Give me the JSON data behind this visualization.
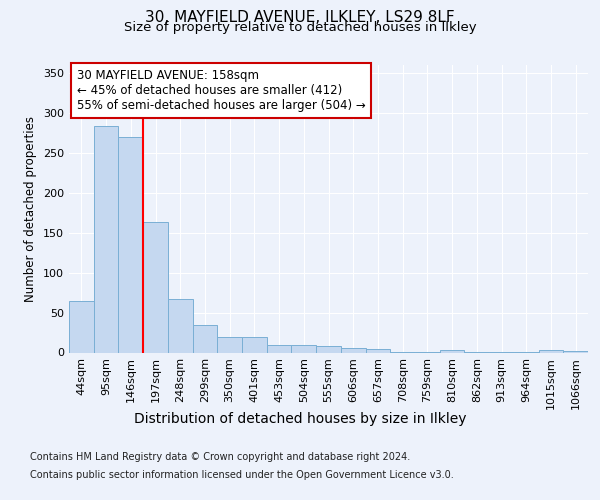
{
  "title": "30, MAYFIELD AVENUE, ILKLEY, LS29 8LF",
  "subtitle": "Size of property relative to detached houses in Ilkley",
  "xlabel": "Distribution of detached houses by size in Ilkley",
  "ylabel": "Number of detached properties",
  "footnote1": "Contains HM Land Registry data © Crown copyright and database right 2024.",
  "footnote2": "Contains public sector information licensed under the Open Government Licence v3.0.",
  "annotation_line1": "30 MAYFIELD AVENUE: 158sqm",
  "annotation_line2": "← 45% of detached houses are smaller (412)",
  "annotation_line3": "55% of semi-detached houses are larger (504) →",
  "bar_labels": [
    "44sqm",
    "95sqm",
    "146sqm",
    "197sqm",
    "248sqm",
    "299sqm",
    "350sqm",
    "401sqm",
    "453sqm",
    "504sqm",
    "555sqm",
    "606sqm",
    "657sqm",
    "708sqm",
    "759sqm",
    "810sqm",
    "862sqm",
    "913sqm",
    "964sqm",
    "1015sqm",
    "1066sqm"
  ],
  "bar_values": [
    65,
    283,
    270,
    163,
    67,
    35,
    20,
    20,
    9,
    10,
    8,
    6,
    5,
    1,
    1,
    3,
    1,
    1,
    1,
    3,
    2
  ],
  "bar_color": "#c5d8f0",
  "bar_edge_color": "#7aafd4",
  "red_line_x": 2.5,
  "ylim": [
    0,
    360
  ],
  "yticks": [
    0,
    50,
    100,
    150,
    200,
    250,
    300,
    350
  ],
  "background_color": "#edf2fb",
  "plot_bg_color": "#edf2fb",
  "grid_color": "#ffffff",
  "annotation_box_color": "#ffffff",
  "annotation_border_color": "#cc0000",
  "title_fontsize": 11,
  "subtitle_fontsize": 9.5,
  "xlabel_fontsize": 10,
  "ylabel_fontsize": 8.5,
  "tick_fontsize": 8,
  "annotation_fontsize": 8.5,
  "footnote_fontsize": 7
}
